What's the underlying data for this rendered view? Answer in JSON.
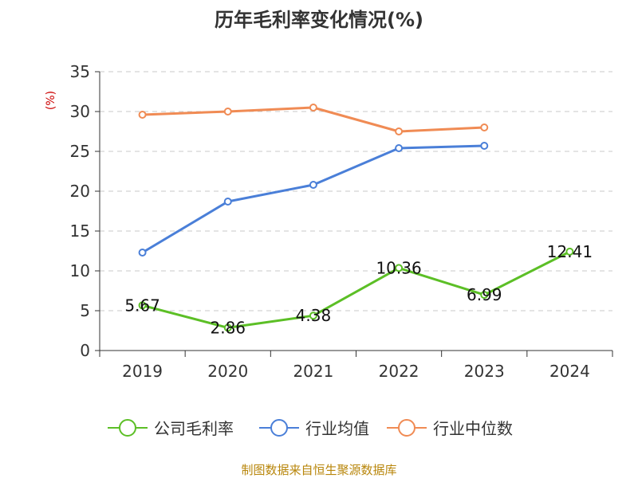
{
  "chart_data": {
    "type": "line",
    "title": "历年毛利率变化情况(%)",
    "ylabel": "(%)",
    "xlabel": "",
    "categories": [
      "2019",
      "2020",
      "2021",
      "2022",
      "2023",
      "2024"
    ],
    "ylim": [
      0,
      35
    ],
    "yticks": [
      "0",
      "5",
      "10",
      "15",
      "20",
      "25",
      "30",
      "35"
    ],
    "grid": true,
    "legend_position": "bottom",
    "series": [
      {
        "name": "公司毛利率",
        "color": "#5cbf26",
        "values": [
          5.67,
          2.86,
          4.38,
          10.36,
          6.99,
          12.41
        ],
        "labels": [
          "5.67",
          "2.86",
          "4.38",
          "10.36",
          "6.99",
          "12.41"
        ]
      },
      {
        "name": "行业均值",
        "color": "#4a7fd8",
        "values": [
          12.3,
          18.7,
          20.8,
          25.4,
          25.7,
          null
        ]
      },
      {
        "name": "行业中位数",
        "color": "#f08b54",
        "values": [
          29.6,
          30.0,
          30.5,
          27.5,
          28.0,
          null
        ]
      }
    ]
  },
  "footer": {
    "source": "制图数据来自恒生聚源数据库"
  }
}
